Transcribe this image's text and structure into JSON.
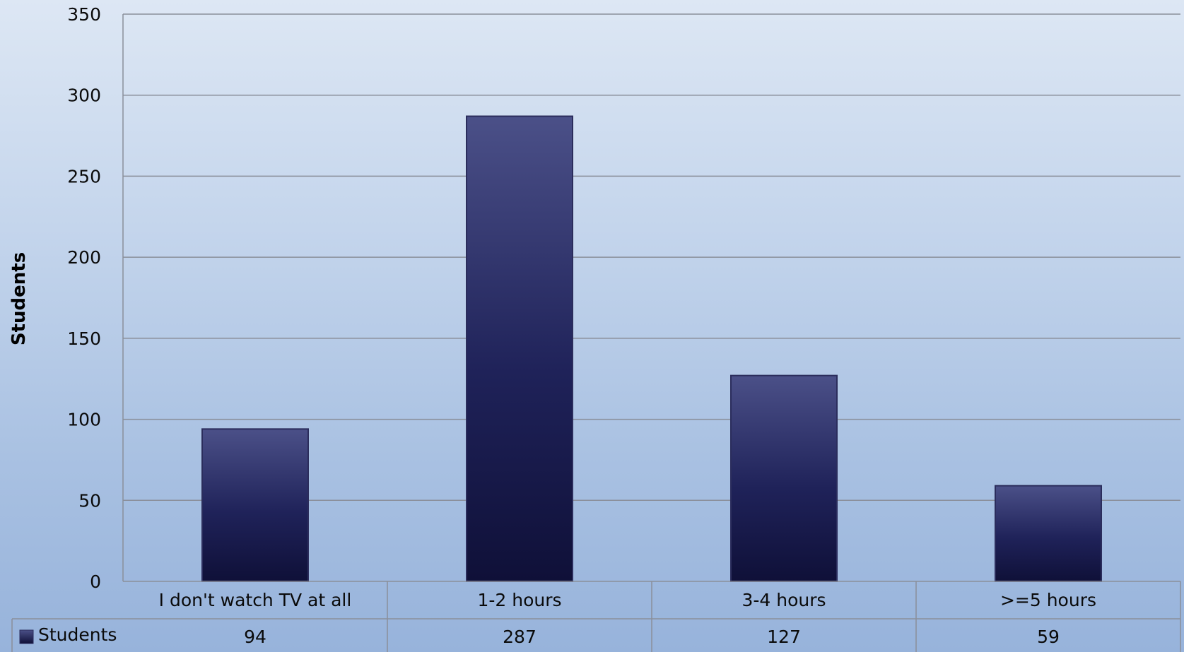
{
  "chart_data": {
    "type": "bar",
    "title": "",
    "xlabel": "",
    "ylabel": "Students",
    "categories": [
      "I don't watch TV at all",
      "1-2 hours",
      "3-4 hours",
      ">=5 hours"
    ],
    "series": [
      {
        "name": "Students",
        "values": [
          94,
          287,
          127,
          59
        ]
      }
    ],
    "data_table_values": [
      "94",
      "287",
      "127",
      "59"
    ],
    "ylim": [
      0,
      350
    ],
    "yticks": [
      0,
      50,
      100,
      150,
      200,
      250,
      300,
      350
    ],
    "grid": true,
    "legend": "data-table-left",
    "colors": {
      "bar_top": "#4b5088",
      "bar_bottom": "#0f1038",
      "gridline": "#8a8f9a",
      "table_border": "#8a8f9a"
    }
  }
}
